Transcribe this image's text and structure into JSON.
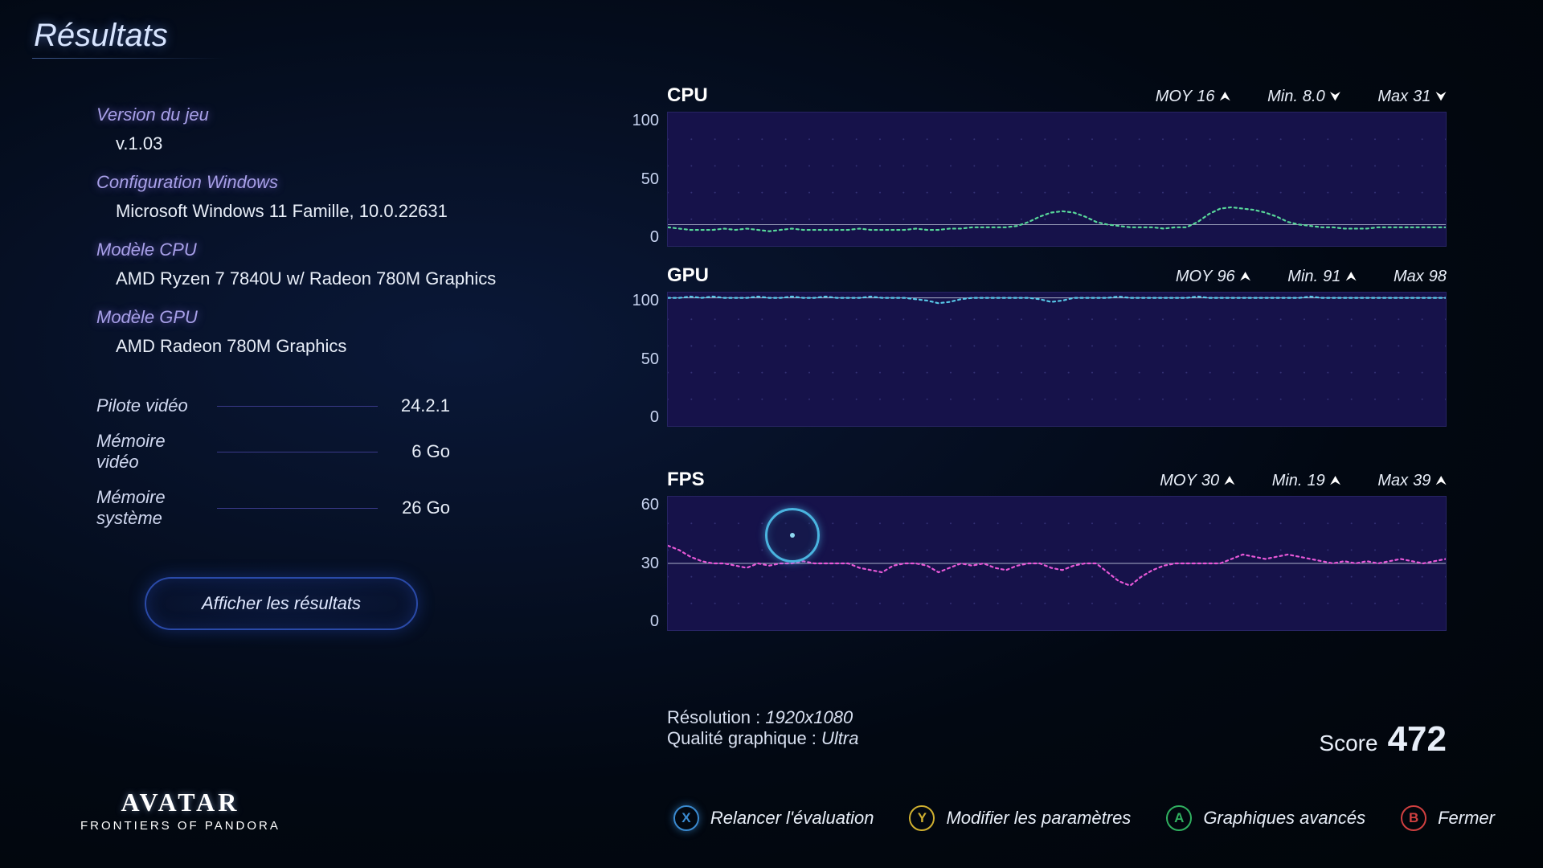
{
  "page": {
    "title": "Résultats"
  },
  "sysinfo": {
    "version_label": "Version du jeu",
    "version_value": "v.1.03",
    "os_label": "Configuration Windows",
    "os_value": "Microsoft Windows 11 Famille, 10.0.22631",
    "cpu_label": "Modèle CPU",
    "cpu_value": "AMD Ryzen 7 7840U w/ Radeon 780M Graphics",
    "gpu_label": "Modèle GPU",
    "gpu_value": "AMD Radeon 780M Graphics",
    "driver_label": "Pilote vidéo",
    "driver_value": "24.2.1",
    "vram_label": "Mémoire vidéo",
    "vram_value": "6 Go",
    "sysmem_label": "Mémoire système",
    "sysmem_value": "26 Go"
  },
  "buttons": {
    "show_results": "Afficher les résultats",
    "relaunch": "Relancer l'évaluation",
    "modify": "Modifier les paramètres",
    "advanced": "Graphiques avancés",
    "close": "Fermer"
  },
  "charts": {
    "cpu": {
      "title": "CPU",
      "avg_label": "MOY",
      "avg_value": "16",
      "min_label": "Min.",
      "min_value": "8.0",
      "max_label": "Max",
      "max_value": "31",
      "avg_dir": "up",
      "min_dir": "down",
      "max_dir": "down",
      "ylim": [
        0,
        100
      ],
      "yticks": [
        "100",
        "50",
        "0"
      ],
      "line_color": "#58d89a",
      "baseline_color": "#d0d8e8",
      "grid_dot_color": "#5050a0",
      "background_color": "#16124a",
      "values": [
        14,
        13,
        12,
        12,
        12,
        13,
        12,
        13,
        12,
        11,
        12,
        13,
        12,
        12,
        12,
        12,
        12,
        13,
        12,
        12,
        12,
        12,
        13,
        12,
        12,
        13,
        13,
        14,
        14,
        14,
        14,
        15,
        18,
        22,
        25,
        26,
        25,
        22,
        18,
        16,
        15,
        14,
        14,
        14,
        13,
        14,
        14,
        18,
        24,
        28,
        29,
        28,
        27,
        25,
        22,
        18,
        16,
        15,
        14,
        14,
        13,
        13,
        13,
        14,
        14,
        14,
        14,
        14,
        14,
        14
      ]
    },
    "gpu": {
      "title": "GPU",
      "avg_label": "MOY",
      "avg_value": "96",
      "min_label": "Min.",
      "min_value": "91",
      "max_label": "Max",
      "max_value": "98",
      "avg_dir": "up",
      "min_dir": "up",
      "max_dir": "none",
      "ylim": [
        0,
        100
      ],
      "yticks": [
        "100",
        "50",
        "0"
      ],
      "line_color": "#58c8e8",
      "baseline_color": "#d0d8e8",
      "grid_dot_color": "#5050a0",
      "background_color": "#16124a",
      "values": [
        96,
        96,
        97,
        96,
        97,
        96,
        96,
        96,
        97,
        96,
        96,
        97,
        96,
        96,
        97,
        96,
        96,
        96,
        97,
        96,
        96,
        96,
        95,
        94,
        92,
        93,
        95,
        96,
        96,
        96,
        96,
        96,
        96,
        95,
        93,
        94,
        96,
        96,
        96,
        96,
        97,
        96,
        96,
        96,
        96,
        96,
        96,
        97,
        96,
        96,
        96,
        96,
        96,
        96,
        96,
        96,
        96,
        97,
        96,
        96,
        96,
        96,
        96,
        96,
        96,
        96,
        96,
        96,
        96,
        96
      ]
    },
    "fps": {
      "title": "FPS",
      "avg_label": "MOY",
      "avg_value": "30",
      "min_label": "Min.",
      "min_value": "19",
      "max_label": "Max",
      "max_value": "39",
      "avg_dir": "up",
      "min_dir": "up",
      "max_dir": "up",
      "ylim": [
        0,
        60
      ],
      "yticks": [
        "60",
        "30",
        "0"
      ],
      "line_color": "#e858d8",
      "baseline_color": "#d0d8e8",
      "grid_dot_color": "#5050a0",
      "background_color": "#16124a",
      "values": [
        38,
        36,
        33,
        31,
        30,
        30,
        29,
        28,
        30,
        29,
        30,
        30,
        31,
        30,
        30,
        30,
        30,
        28,
        27,
        26,
        29,
        30,
        30,
        29,
        26,
        28,
        30,
        29,
        30,
        28,
        27,
        29,
        30,
        30,
        28,
        27,
        29,
        30,
        30,
        26,
        22,
        20,
        24,
        27,
        29,
        30,
        30,
        30,
        30,
        30,
        32,
        34,
        33,
        32,
        33,
        34,
        33,
        32,
        31,
        30,
        31,
        30,
        31,
        30,
        31,
        32,
        31,
        30,
        31,
        32
      ],
      "cursor_pos_pct": 16
    }
  },
  "footer": {
    "resolution_label": "Résolution :",
    "resolution_value": "1920x1080",
    "quality_label": "Qualité graphique :",
    "quality_value": "Ultra",
    "score_label": "Score",
    "score_value": "472"
  },
  "logo": {
    "main": "AVATAR",
    "sub": "FRONTIERS OF PANDORA"
  }
}
